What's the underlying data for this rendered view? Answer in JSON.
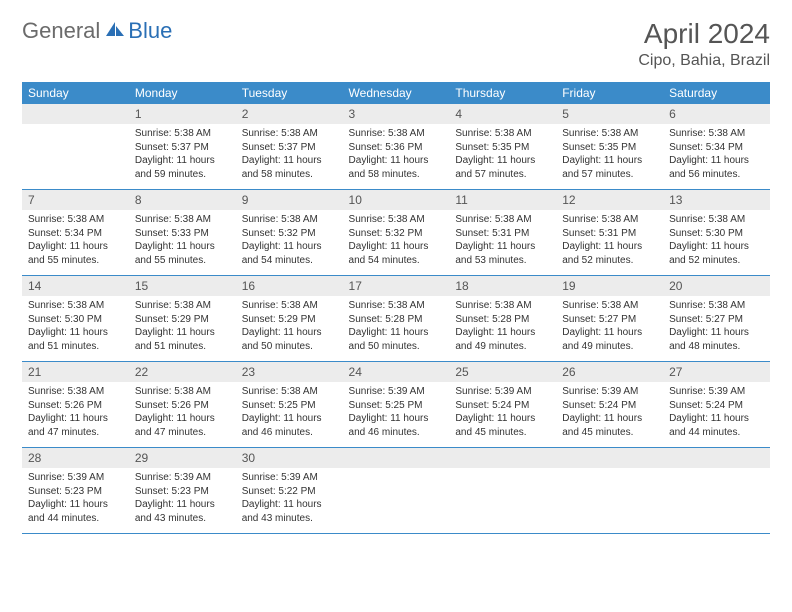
{
  "logo": {
    "text1": "General",
    "text2": "Blue"
  },
  "title": "April 2024",
  "location": "Cipo, Bahia, Brazil",
  "colors": {
    "header_bg": "#3b8bc9",
    "header_text": "#ffffff",
    "daynum_bg": "#ececec",
    "border": "#3b8bc9",
    "logo_gray": "#6b6b6b",
    "logo_blue": "#2a6fb5"
  },
  "dayNames": [
    "Sunday",
    "Monday",
    "Tuesday",
    "Wednesday",
    "Thursday",
    "Friday",
    "Saturday"
  ],
  "weeks": [
    [
      {
        "num": "",
        "lines": []
      },
      {
        "num": "1",
        "lines": [
          "Sunrise: 5:38 AM",
          "Sunset: 5:37 PM",
          "Daylight: 11 hours",
          "and 59 minutes."
        ]
      },
      {
        "num": "2",
        "lines": [
          "Sunrise: 5:38 AM",
          "Sunset: 5:37 PM",
          "Daylight: 11 hours",
          "and 58 minutes."
        ]
      },
      {
        "num": "3",
        "lines": [
          "Sunrise: 5:38 AM",
          "Sunset: 5:36 PM",
          "Daylight: 11 hours",
          "and 58 minutes."
        ]
      },
      {
        "num": "4",
        "lines": [
          "Sunrise: 5:38 AM",
          "Sunset: 5:35 PM",
          "Daylight: 11 hours",
          "and 57 minutes."
        ]
      },
      {
        "num": "5",
        "lines": [
          "Sunrise: 5:38 AM",
          "Sunset: 5:35 PM",
          "Daylight: 11 hours",
          "and 57 minutes."
        ]
      },
      {
        "num": "6",
        "lines": [
          "Sunrise: 5:38 AM",
          "Sunset: 5:34 PM",
          "Daylight: 11 hours",
          "and 56 minutes."
        ]
      }
    ],
    [
      {
        "num": "7",
        "lines": [
          "Sunrise: 5:38 AM",
          "Sunset: 5:34 PM",
          "Daylight: 11 hours",
          "and 55 minutes."
        ]
      },
      {
        "num": "8",
        "lines": [
          "Sunrise: 5:38 AM",
          "Sunset: 5:33 PM",
          "Daylight: 11 hours",
          "and 55 minutes."
        ]
      },
      {
        "num": "9",
        "lines": [
          "Sunrise: 5:38 AM",
          "Sunset: 5:32 PM",
          "Daylight: 11 hours",
          "and 54 minutes."
        ]
      },
      {
        "num": "10",
        "lines": [
          "Sunrise: 5:38 AM",
          "Sunset: 5:32 PM",
          "Daylight: 11 hours",
          "and 54 minutes."
        ]
      },
      {
        "num": "11",
        "lines": [
          "Sunrise: 5:38 AM",
          "Sunset: 5:31 PM",
          "Daylight: 11 hours",
          "and 53 minutes."
        ]
      },
      {
        "num": "12",
        "lines": [
          "Sunrise: 5:38 AM",
          "Sunset: 5:31 PM",
          "Daylight: 11 hours",
          "and 52 minutes."
        ]
      },
      {
        "num": "13",
        "lines": [
          "Sunrise: 5:38 AM",
          "Sunset: 5:30 PM",
          "Daylight: 11 hours",
          "and 52 minutes."
        ]
      }
    ],
    [
      {
        "num": "14",
        "lines": [
          "Sunrise: 5:38 AM",
          "Sunset: 5:30 PM",
          "Daylight: 11 hours",
          "and 51 minutes."
        ]
      },
      {
        "num": "15",
        "lines": [
          "Sunrise: 5:38 AM",
          "Sunset: 5:29 PM",
          "Daylight: 11 hours",
          "and 51 minutes."
        ]
      },
      {
        "num": "16",
        "lines": [
          "Sunrise: 5:38 AM",
          "Sunset: 5:29 PM",
          "Daylight: 11 hours",
          "and 50 minutes."
        ]
      },
      {
        "num": "17",
        "lines": [
          "Sunrise: 5:38 AM",
          "Sunset: 5:28 PM",
          "Daylight: 11 hours",
          "and 50 minutes."
        ]
      },
      {
        "num": "18",
        "lines": [
          "Sunrise: 5:38 AM",
          "Sunset: 5:28 PM",
          "Daylight: 11 hours",
          "and 49 minutes."
        ]
      },
      {
        "num": "19",
        "lines": [
          "Sunrise: 5:38 AM",
          "Sunset: 5:27 PM",
          "Daylight: 11 hours",
          "and 49 minutes."
        ]
      },
      {
        "num": "20",
        "lines": [
          "Sunrise: 5:38 AM",
          "Sunset: 5:27 PM",
          "Daylight: 11 hours",
          "and 48 minutes."
        ]
      }
    ],
    [
      {
        "num": "21",
        "lines": [
          "Sunrise: 5:38 AM",
          "Sunset: 5:26 PM",
          "Daylight: 11 hours",
          "and 47 minutes."
        ]
      },
      {
        "num": "22",
        "lines": [
          "Sunrise: 5:38 AM",
          "Sunset: 5:26 PM",
          "Daylight: 11 hours",
          "and 47 minutes."
        ]
      },
      {
        "num": "23",
        "lines": [
          "Sunrise: 5:38 AM",
          "Sunset: 5:25 PM",
          "Daylight: 11 hours",
          "and 46 minutes."
        ]
      },
      {
        "num": "24",
        "lines": [
          "Sunrise: 5:39 AM",
          "Sunset: 5:25 PM",
          "Daylight: 11 hours",
          "and 46 minutes."
        ]
      },
      {
        "num": "25",
        "lines": [
          "Sunrise: 5:39 AM",
          "Sunset: 5:24 PM",
          "Daylight: 11 hours",
          "and 45 minutes."
        ]
      },
      {
        "num": "26",
        "lines": [
          "Sunrise: 5:39 AM",
          "Sunset: 5:24 PM",
          "Daylight: 11 hours",
          "and 45 minutes."
        ]
      },
      {
        "num": "27",
        "lines": [
          "Sunrise: 5:39 AM",
          "Sunset: 5:24 PM",
          "Daylight: 11 hours",
          "and 44 minutes."
        ]
      }
    ],
    [
      {
        "num": "28",
        "lines": [
          "Sunrise: 5:39 AM",
          "Sunset: 5:23 PM",
          "Daylight: 11 hours",
          "and 44 minutes."
        ]
      },
      {
        "num": "29",
        "lines": [
          "Sunrise: 5:39 AM",
          "Sunset: 5:23 PM",
          "Daylight: 11 hours",
          "and 43 minutes."
        ]
      },
      {
        "num": "30",
        "lines": [
          "Sunrise: 5:39 AM",
          "Sunset: 5:22 PM",
          "Daylight: 11 hours",
          "and 43 minutes."
        ]
      },
      {
        "num": "",
        "lines": []
      },
      {
        "num": "",
        "lines": []
      },
      {
        "num": "",
        "lines": []
      },
      {
        "num": "",
        "lines": []
      }
    ]
  ]
}
